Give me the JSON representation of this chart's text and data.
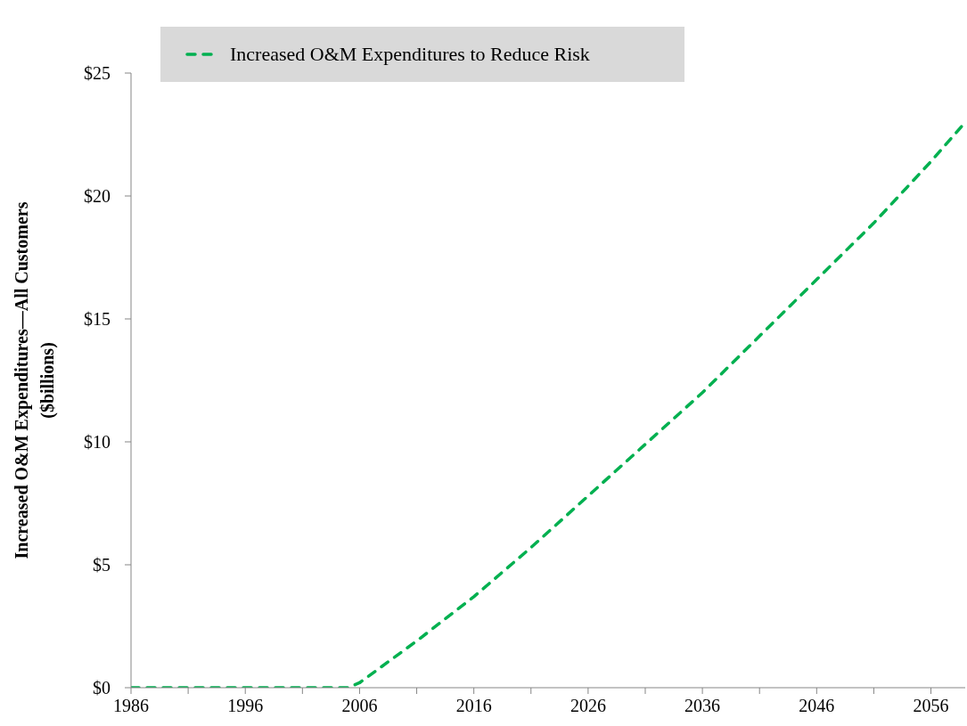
{
  "chart_data": {
    "type": "line",
    "ylabel": "Increased O&M Expenditures—All Customers\n($billions)",
    "x": [
      1986,
      2005,
      2006,
      2011,
      2016,
      2021,
      2026,
      2031,
      2036,
      2041,
      2046,
      2051,
      2056,
      2059
    ],
    "series": [
      {
        "name": "Increased O&M Expenditures to Reduce Risk",
        "color": "#00b050",
        "line_style": "dashed",
        "values": [
          0,
          0,
          0.2,
          1.9,
          3.7,
          5.7,
          7.8,
          9.9,
          12.0,
          14.3,
          16.6,
          18.9,
          21.4,
          23.0
        ]
      }
    ],
    "xlim": [
      1986,
      2059
    ],
    "xticks": [
      1986,
      {
        "value": 1991,
        "label": null
      },
      1996,
      {
        "value": 2001,
        "label": null
      },
      2006,
      {
        "value": 2011,
        "label": null
      },
      2016,
      {
        "value": 2021,
        "label": null
      },
      2026,
      {
        "value": 2031,
        "label": null
      },
      2036,
      {
        "value": 2041,
        "label": null
      },
      2046,
      {
        "value": 2051,
        "label": null
      },
      2056
    ],
    "ylim": [
      0,
      25
    ],
    "yticks": [
      {
        "value": 0,
        "label": "$0"
      },
      {
        "value": 5,
        "label": "$5"
      },
      {
        "value": 10,
        "label": "$10"
      },
      {
        "value": 15,
        "label": "$15"
      },
      {
        "value": 20,
        "label": "$20"
      },
      {
        "value": 25,
        "label": "$25"
      }
    ],
    "legend": "top left",
    "marker": "none"
  }
}
